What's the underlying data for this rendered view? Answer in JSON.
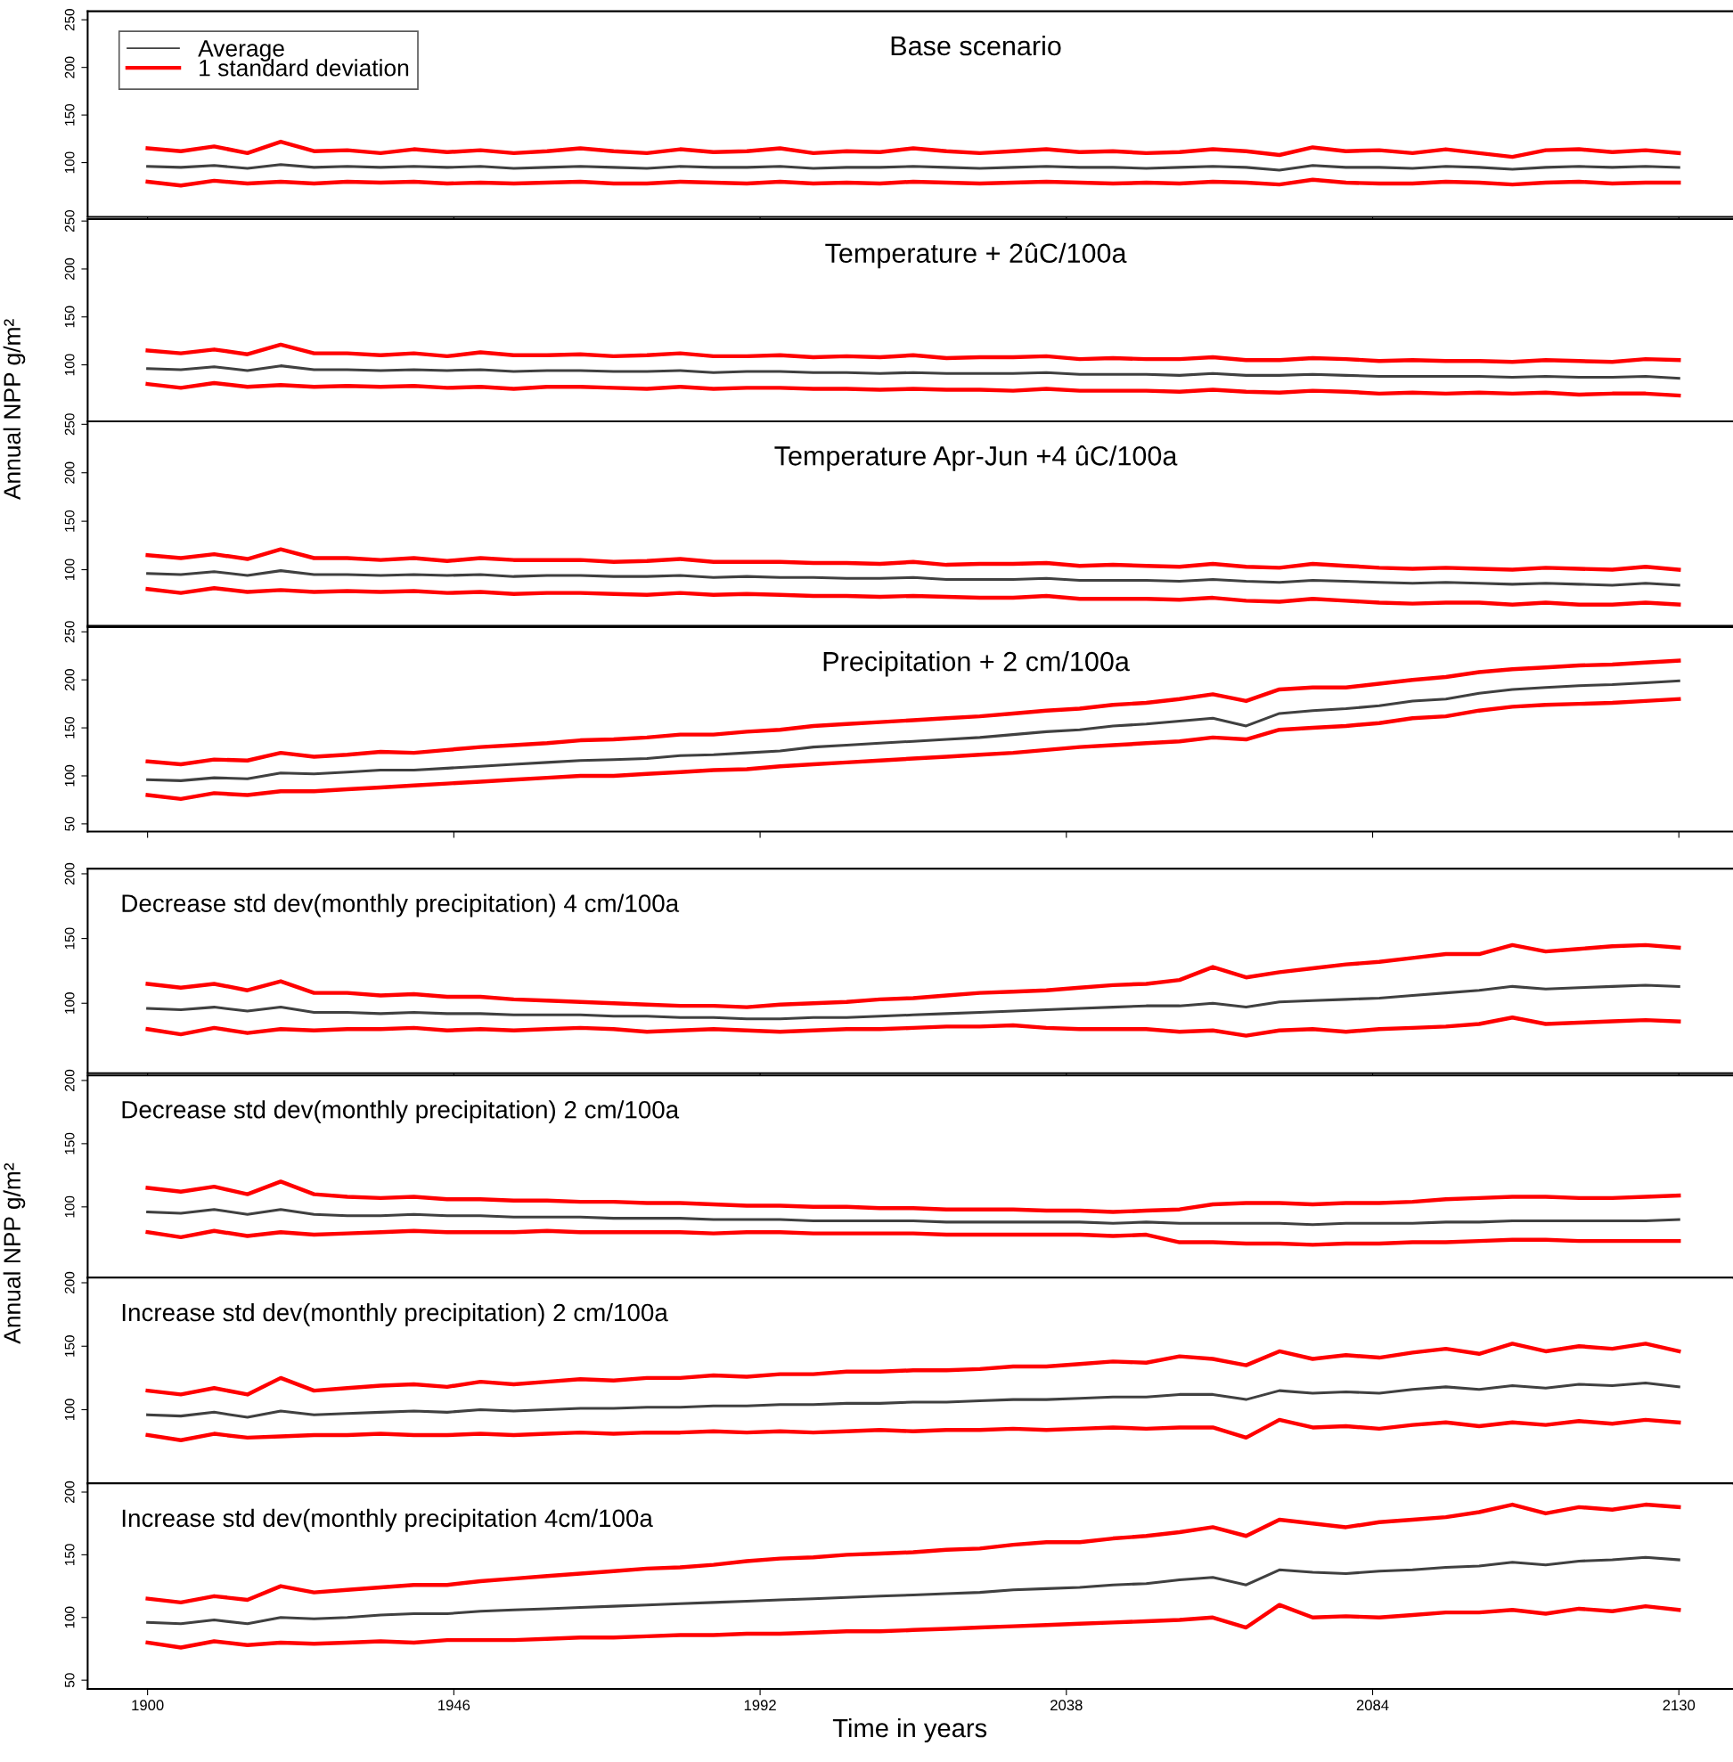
{
  "chart_data": [
    {
      "type": "line",
      "title": "Base scenario",
      "xlim": [
        1891,
        2138
      ],
      "xticks": [
        1900,
        1946,
        1992,
        2038,
        2084,
        2130
      ],
      "ylim": [
        43,
        259
      ],
      "yticks": [
        100,
        150,
        200,
        250
      ],
      "tick_labels": "y",
      "grid": false,
      "legend": "top left",
      "x": [
        1900,
        1905,
        1910,
        1915,
        1920,
        1925,
        1930,
        1935,
        1940,
        1945,
        1950,
        1955,
        1960,
        1965,
        1970,
        1975,
        1980,
        1985,
        1990,
        1995,
        2000,
        2005,
        2010,
        2015,
        2020,
        2025,
        2030,
        2035,
        2040,
        2045,
        2050,
        2055,
        2060,
        2065,
        2070,
        2075,
        2080,
        2085,
        2090,
        2095,
        2100,
        2105,
        2110,
        2115,
        2120,
        2125,
        2130
      ],
      "series": [
        {
          "name": "Average",
          "color": "#404040",
          "values": [
            96,
            95,
            97,
            94,
            98,
            95,
            96,
            95,
            96,
            95,
            96,
            94,
            95,
            96,
            95,
            94,
            96,
            95,
            95,
            96,
            94,
            95,
            95,
            96,
            95,
            94,
            95,
            96,
            95,
            95,
            94,
            95,
            96,
            95,
            92,
            97,
            95,
            95,
            94,
            96,
            95,
            93,
            95,
            96,
            95,
            96,
            95
          ]
        },
        {
          "name": "1 standard deviation",
          "color": "#ff0000",
          "values": [
            115,
            112,
            117,
            110,
            122,
            112,
            113,
            110,
            114,
            111,
            113,
            110,
            112,
            115,
            112,
            110,
            114,
            111,
            112,
            115,
            110,
            112,
            111,
            115,
            112,
            110,
            112,
            114,
            111,
            112,
            110,
            111,
            114,
            112,
            108,
            116,
            112,
            113,
            110,
            114,
            110,
            106,
            113,
            114,
            111,
            113,
            110
          ]
        },
        {
          "color": "#ff0000",
          "values": [
            80,
            76,
            81,
            78,
            80,
            78,
            80,
            79,
            80,
            78,
            79,
            78,
            79,
            80,
            78,
            78,
            80,
            79,
            78,
            80,
            78,
            79,
            78,
            80,
            79,
            78,
            79,
            80,
            79,
            78,
            79,
            78,
            80,
            79,
            77,
            82,
            79,
            78,
            78,
            80,
            79,
            77,
            79,
            80,
            78,
            79,
            79
          ]
        }
      ]
    },
    {
      "type": "line",
      "title": "Temperature + 2ûC/100a",
      "ylabel": "Annual NPP g/m²",
      "xlim": [
        1891,
        2138
      ],
      "xticks": [
        1900,
        1946,
        1992,
        2038,
        2084,
        2130
      ],
      "ylim": [
        41,
        252
      ],
      "yticks": [
        100,
        150,
        200,
        250
      ],
      "tick_labels": "y",
      "grid": false,
      "x": [
        1900,
        1905,
        1910,
        1915,
        1920,
        1925,
        1930,
        1935,
        1940,
        1945,
        1950,
        1955,
        1960,
        1965,
        1970,
        1975,
        1980,
        1985,
        1990,
        1995,
        2000,
        2005,
        2010,
        2015,
        2020,
        2025,
        2030,
        2035,
        2040,
        2045,
        2050,
        2055,
        2060,
        2065,
        2070,
        2075,
        2080,
        2085,
        2090,
        2095,
        2100,
        2105,
        2110,
        2115,
        2120,
        2125,
        2130
      ],
      "series": [
        {
          "color": "#404040",
          "values": [
            96,
            95,
            98,
            94,
            99,
            95,
            95,
            94,
            95,
            94,
            95,
            93,
            94,
            94,
            93,
            93,
            94,
            92,
            93,
            93,
            92,
            92,
            91,
            92,
            91,
            91,
            91,
            92,
            90,
            90,
            90,
            89,
            91,
            89,
            89,
            90,
            89,
            88,
            88,
            88,
            88,
            87,
            88,
            87,
            87,
            88,
            86
          ]
        },
        {
          "color": "#ff0000",
          "values": [
            115,
            112,
            116,
            111,
            121,
            112,
            112,
            110,
            112,
            109,
            113,
            110,
            110,
            111,
            109,
            110,
            112,
            109,
            109,
            110,
            108,
            109,
            108,
            110,
            107,
            108,
            108,
            109,
            106,
            107,
            106,
            106,
            108,
            105,
            105,
            107,
            106,
            104,
            105,
            104,
            104,
            103,
            105,
            104,
            103,
            106,
            105
          ]
        },
        {
          "color": "#ff0000",
          "values": [
            80,
            76,
            81,
            77,
            79,
            77,
            78,
            77,
            78,
            76,
            77,
            75,
            77,
            77,
            76,
            75,
            77,
            75,
            76,
            76,
            75,
            75,
            74,
            75,
            74,
            74,
            73,
            75,
            73,
            73,
            73,
            72,
            74,
            72,
            71,
            73,
            72,
            70,
            71,
            70,
            71,
            70,
            71,
            69,
            70,
            70,
            68
          ]
        }
      ]
    },
    {
      "type": "line",
      "title": "Temperature Apr-Jun +4 ûC/100a",
      "xlim": [
        1891,
        2138
      ],
      "xticks": [
        1900,
        1946,
        1992,
        2038,
        2084,
        2130
      ],
      "ylim": [
        42,
        253
      ],
      "yticks": [
        100,
        150,
        200,
        250
      ],
      "tick_labels": "y",
      "grid": false,
      "x": [
        1900,
        1905,
        1910,
        1915,
        1920,
        1925,
        1930,
        1935,
        1940,
        1945,
        1950,
        1955,
        1960,
        1965,
        1970,
        1975,
        1980,
        1985,
        1990,
        1995,
        2000,
        2005,
        2010,
        2015,
        2020,
        2025,
        2030,
        2035,
        2040,
        2045,
        2050,
        2055,
        2060,
        2065,
        2070,
        2075,
        2080,
        2085,
        2090,
        2095,
        2100,
        2105,
        2110,
        2115,
        2120,
        2125,
        2130
      ],
      "series": [
        {
          "color": "#404040",
          "values": [
            96,
            95,
            98,
            94,
            99,
            95,
            95,
            94,
            95,
            94,
            95,
            93,
            94,
            94,
            93,
            93,
            94,
            92,
            93,
            92,
            92,
            91,
            91,
            92,
            90,
            90,
            90,
            91,
            89,
            89,
            89,
            88,
            90,
            88,
            87,
            89,
            88,
            87,
            86,
            87,
            86,
            85,
            86,
            85,
            84,
            86,
            84
          ]
        },
        {
          "color": "#ff0000",
          "values": [
            115,
            112,
            116,
            111,
            121,
            112,
            112,
            110,
            112,
            109,
            112,
            110,
            110,
            110,
            108,
            109,
            111,
            108,
            108,
            108,
            107,
            107,
            106,
            108,
            105,
            106,
            106,
            107,
            104,
            105,
            104,
            103,
            106,
            103,
            102,
            106,
            104,
            102,
            101,
            102,
            101,
            100,
            102,
            101,
            100,
            103,
            100
          ]
        },
        {
          "color": "#ff0000",
          "values": [
            80,
            76,
            81,
            77,
            79,
            77,
            78,
            77,
            78,
            76,
            77,
            75,
            76,
            76,
            75,
            74,
            76,
            74,
            75,
            74,
            73,
            73,
            72,
            73,
            72,
            71,
            71,
            73,
            70,
            70,
            70,
            69,
            71,
            68,
            67,
            70,
            68,
            66,
            65,
            66,
            66,
            64,
            66,
            64,
            64,
            66,
            64
          ]
        }
      ]
    },
    {
      "type": "line",
      "title": "Precipitation + 2 cm/100a",
      "xlim": [
        1891,
        2138
      ],
      "xticks": [
        1900,
        1946,
        1992,
        2038,
        2084,
        2130
      ],
      "ylim": [
        42,
        255
      ],
      "yticks": [
        50,
        100,
        150,
        200,
        250
      ],
      "tick_labels": "y",
      "grid": false,
      "x": [
        1900,
        1905,
        1910,
        1915,
        1920,
        1925,
        1930,
        1935,
        1940,
        1945,
        1950,
        1955,
        1960,
        1965,
        1970,
        1975,
        1980,
        1985,
        1990,
        1995,
        2000,
        2005,
        2010,
        2015,
        2020,
        2025,
        2030,
        2035,
        2040,
        2045,
        2050,
        2055,
        2060,
        2065,
        2070,
        2075,
        2080,
        2085,
        2090,
        2095,
        2100,
        2105,
        2110,
        2115,
        2120,
        2125,
        2130
      ],
      "series": [
        {
          "color": "#404040",
          "values": [
            96,
            95,
            98,
            97,
            103,
            102,
            104,
            106,
            106,
            108,
            110,
            112,
            114,
            116,
            117,
            118,
            121,
            122,
            124,
            126,
            130,
            132,
            134,
            136,
            138,
            140,
            143,
            146,
            148,
            152,
            154,
            157,
            160,
            152,
            165,
            168,
            170,
            173,
            178,
            180,
            186,
            190,
            192,
            194,
            195,
            197,
            199
          ]
        },
        {
          "color": "#ff0000",
          "values": [
            115,
            112,
            117,
            116,
            124,
            120,
            122,
            125,
            124,
            127,
            130,
            132,
            134,
            137,
            138,
            140,
            143,
            143,
            146,
            148,
            152,
            154,
            156,
            158,
            160,
            162,
            165,
            168,
            170,
            174,
            176,
            180,
            185,
            178,
            190,
            192,
            192,
            196,
            200,
            203,
            208,
            211,
            213,
            215,
            216,
            218,
            220
          ]
        },
        {
          "color": "#ff0000",
          "values": [
            80,
            76,
            82,
            80,
            84,
            84,
            86,
            88,
            90,
            92,
            94,
            96,
            98,
            100,
            100,
            102,
            104,
            106,
            107,
            110,
            112,
            114,
            116,
            118,
            120,
            122,
            124,
            127,
            130,
            132,
            134,
            136,
            140,
            138,
            148,
            150,
            152,
            155,
            160,
            162,
            168,
            172,
            174,
            175,
            176,
            178,
            180
          ]
        }
      ]
    },
    {
      "type": "line",
      "title": "Decrease std dev(monthly precipitation) 4 cm/100a",
      "xlim": [
        1891,
        2138
      ],
      "xticks": [
        1900,
        1946,
        1992,
        2038,
        2084,
        2130
      ],
      "ylim": [
        46,
        204
      ],
      "yticks": [
        100,
        150,
        200
      ],
      "tick_labels": "y",
      "grid": false,
      "x": [
        1900,
        1905,
        1910,
        1915,
        1920,
        1925,
        1930,
        1935,
        1940,
        1945,
        1950,
        1955,
        1960,
        1965,
        1970,
        1975,
        1980,
        1985,
        1990,
        1995,
        2000,
        2005,
        2010,
        2015,
        2020,
        2025,
        2030,
        2035,
        2040,
        2045,
        2050,
        2055,
        2060,
        2065,
        2070,
        2075,
        2080,
        2085,
        2090,
        2095,
        2100,
        2105,
        2110,
        2115,
        2120,
        2125,
        2130
      ],
      "series": [
        {
          "color": "#404040",
          "values": [
            96,
            95,
            97,
            94,
            97,
            93,
            93,
            92,
            93,
            92,
            92,
            91,
            91,
            91,
            90,
            90,
            89,
            89,
            88,
            88,
            89,
            89,
            90,
            91,
            92,
            93,
            94,
            95,
            96,
            97,
            98,
            98,
            100,
            97,
            101,
            102,
            103,
            104,
            106,
            108,
            110,
            113,
            111,
            112,
            113,
            114,
            113
          ]
        },
        {
          "color": "#ff0000",
          "values": [
            115,
            112,
            115,
            110,
            117,
            108,
            108,
            106,
            107,
            105,
            105,
            103,
            102,
            101,
            100,
            99,
            98,
            98,
            97,
            99,
            100,
            101,
            103,
            104,
            106,
            108,
            109,
            110,
            112,
            114,
            115,
            118,
            128,
            120,
            124,
            127,
            130,
            132,
            135,
            138,
            138,
            145,
            140,
            142,
            144,
            145,
            143
          ]
        },
        {
          "color": "#ff0000",
          "values": [
            80,
            76,
            81,
            77,
            80,
            79,
            80,
            80,
            81,
            79,
            80,
            79,
            80,
            81,
            80,
            78,
            79,
            80,
            79,
            78,
            79,
            80,
            80,
            81,
            82,
            82,
            83,
            81,
            80,
            80,
            80,
            78,
            79,
            75,
            79,
            80,
            78,
            80,
            81,
            82,
            84,
            89,
            84,
            85,
            86,
            87,
            86
          ]
        }
      ]
    },
    {
      "type": "line",
      "title": "Decrease std dev(monthly precipitation) 2 cm/100a",
      "ylabel": "Annual NPP g/m²",
      "xlim": [
        1891,
        2138
      ],
      "xticks": [
        1900,
        1946,
        1992,
        2038,
        2084,
        2130
      ],
      "ylim": [
        44,
        204
      ],
      "yticks": [
        100,
        150,
        200
      ],
      "tick_labels": "y",
      "grid": false,
      "x": [
        1900,
        1905,
        1910,
        1915,
        1920,
        1925,
        1930,
        1935,
        1940,
        1945,
        1950,
        1955,
        1960,
        1965,
        1970,
        1975,
        1980,
        1985,
        1990,
        1995,
        2000,
        2005,
        2010,
        2015,
        2020,
        2025,
        2030,
        2035,
        2040,
        2045,
        2050,
        2055,
        2060,
        2065,
        2070,
        2075,
        2080,
        2085,
        2090,
        2095,
        2100,
        2105,
        2110,
        2115,
        2120,
        2125,
        2130
      ],
      "series": [
        {
          "color": "#404040",
          "values": [
            96,
            95,
            98,
            94,
            98,
            94,
            93,
            93,
            94,
            93,
            93,
            92,
            92,
            92,
            91,
            91,
            91,
            90,
            90,
            90,
            89,
            89,
            89,
            89,
            88,
            88,
            88,
            88,
            88,
            87,
            88,
            87,
            87,
            87,
            87,
            86,
            87,
            87,
            87,
            88,
            88,
            89,
            89,
            89,
            89,
            89,
            90
          ]
        },
        {
          "color": "#ff0000",
          "values": [
            115,
            112,
            116,
            110,
            120,
            110,
            108,
            107,
            108,
            106,
            106,
            105,
            105,
            104,
            104,
            103,
            103,
            102,
            101,
            101,
            100,
            100,
            99,
            99,
            98,
            98,
            98,
            97,
            97,
            96,
            97,
            98,
            102,
            103,
            103,
            102,
            103,
            103,
            104,
            106,
            107,
            108,
            108,
            107,
            107,
            108,
            109
          ]
        },
        {
          "color": "#ff0000",
          "values": [
            80,
            76,
            81,
            77,
            80,
            78,
            79,
            80,
            81,
            80,
            80,
            80,
            81,
            80,
            80,
            80,
            80,
            79,
            80,
            80,
            79,
            79,
            79,
            79,
            78,
            78,
            78,
            78,
            78,
            77,
            78,
            72,
            72,
            71,
            71,
            70,
            71,
            71,
            72,
            72,
            73,
            74,
            74,
            73,
            73,
            73,
            73
          ]
        }
      ]
    },
    {
      "type": "line",
      "title": "Increase std dev(monthly precipitation) 2 cm/100a",
      "xlim": [
        1891,
        2138
      ],
      "xticks": [
        1900,
        1946,
        1992,
        2038,
        2084,
        2130
      ],
      "ylim": [
        42,
        204
      ],
      "yticks": [
        100,
        150,
        200
      ],
      "tick_labels": "y",
      "grid": false,
      "x": [
        1900,
        1905,
        1910,
        1915,
        1920,
        1925,
        1930,
        1935,
        1940,
        1945,
        1950,
        1955,
        1960,
        1965,
        1970,
        1975,
        1980,
        1985,
        1990,
        1995,
        2000,
        2005,
        2010,
        2015,
        2020,
        2025,
        2030,
        2035,
        2040,
        2045,
        2050,
        2055,
        2060,
        2065,
        2070,
        2075,
        2080,
        2085,
        2090,
        2095,
        2100,
        2105,
        2110,
        2115,
        2120,
        2125,
        2130
      ],
      "series": [
        {
          "color": "#404040",
          "values": [
            96,
            95,
            98,
            94,
            99,
            96,
            97,
            98,
            99,
            98,
            100,
            99,
            100,
            101,
            101,
            102,
            102,
            103,
            103,
            104,
            104,
            105,
            105,
            106,
            106,
            107,
            108,
            108,
            109,
            110,
            110,
            112,
            112,
            108,
            115,
            113,
            114,
            113,
            116,
            118,
            116,
            119,
            117,
            120,
            119,
            121,
            118
          ]
        },
        {
          "color": "#ff0000",
          "values": [
            115,
            112,
            117,
            112,
            125,
            115,
            117,
            119,
            120,
            118,
            122,
            120,
            122,
            124,
            123,
            125,
            125,
            127,
            126,
            128,
            128,
            130,
            130,
            131,
            131,
            132,
            134,
            134,
            136,
            138,
            137,
            142,
            140,
            135,
            146,
            140,
            143,
            141,
            145,
            148,
            144,
            152,
            146,
            150,
            148,
            152,
            146
          ]
        },
        {
          "color": "#ff0000",
          "values": [
            80,
            76,
            81,
            78,
            79,
            80,
            80,
            81,
            80,
            80,
            81,
            80,
            81,
            82,
            81,
            82,
            82,
            83,
            82,
            83,
            82,
            83,
            84,
            83,
            84,
            84,
            85,
            84,
            85,
            86,
            85,
            86,
            86,
            78,
            92,
            86,
            87,
            85,
            88,
            90,
            87,
            90,
            88,
            91,
            89,
            92,
            90
          ]
        }
      ]
    },
    {
      "type": "line",
      "title": "Increase std dev(monthly precipitation 4cm/100a",
      "xlabel": "Time in years",
      "xlim": [
        1891,
        2138
      ],
      "xticks": [
        1900,
        1946,
        1992,
        2038,
        2084,
        2130
      ],
      "ylim": [
        43,
        207
      ],
      "yticks": [
        50,
        100,
        150,
        200
      ],
      "grid": false,
      "x": [
        1900,
        1905,
        1910,
        1915,
        1920,
        1925,
        1930,
        1935,
        1940,
        1945,
        1950,
        1955,
        1960,
        1965,
        1970,
        1975,
        1980,
        1985,
        1990,
        1995,
        2000,
        2005,
        2010,
        2015,
        2020,
        2025,
        2030,
        2035,
        2040,
        2045,
        2050,
        2055,
        2060,
        2065,
        2070,
        2075,
        2080,
        2085,
        2090,
        2095,
        2100,
        2105,
        2110,
        2115,
        2120,
        2125,
        2130
      ],
      "series": [
        {
          "color": "#404040",
          "values": [
            96,
            95,
            98,
            95,
            100,
            99,
            100,
            102,
            103,
            103,
            105,
            106,
            107,
            108,
            109,
            110,
            111,
            112,
            113,
            114,
            115,
            116,
            117,
            118,
            119,
            120,
            122,
            123,
            124,
            126,
            127,
            130,
            132,
            126,
            138,
            136,
            135,
            137,
            138,
            140,
            141,
            144,
            142,
            145,
            146,
            148,
            146
          ]
        },
        {
          "color": "#ff0000",
          "values": [
            115,
            112,
            117,
            114,
            125,
            120,
            122,
            124,
            126,
            126,
            129,
            131,
            133,
            135,
            137,
            139,
            140,
            142,
            145,
            147,
            148,
            150,
            151,
            152,
            154,
            155,
            158,
            160,
            160,
            163,
            165,
            168,
            172,
            165,
            178,
            175,
            172,
            176,
            178,
            180,
            184,
            190,
            183,
            188,
            186,
            190,
            188
          ]
        },
        {
          "color": "#ff0000",
          "values": [
            80,
            76,
            81,
            78,
            80,
            79,
            80,
            81,
            80,
            82,
            82,
            82,
            83,
            84,
            84,
            85,
            86,
            86,
            87,
            87,
            88,
            89,
            89,
            90,
            91,
            92,
            93,
            94,
            95,
            96,
            97,
            98,
            100,
            92,
            110,
            100,
            101,
            100,
            102,
            104,
            104,
            106,
            103,
            107,
            105,
            109,
            106
          ]
        }
      ]
    }
  ]
}
